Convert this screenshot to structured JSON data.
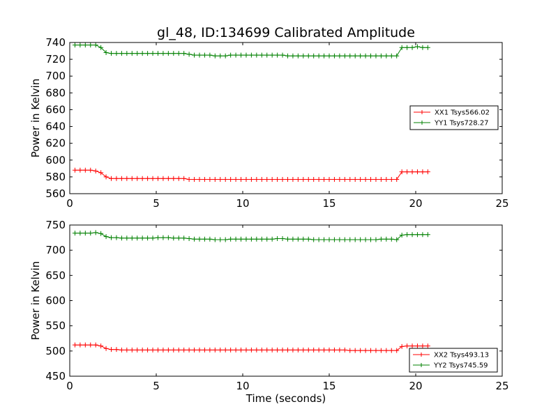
{
  "chart_data": [
    {
      "type": "line",
      "title": "gl_48, ID:134699 Calibrated Amplitude",
      "xlabel": "",
      "ylabel": "Power in Kelvin",
      "xlim": [
        0,
        25
      ],
      "ylim": [
        560,
        740
      ],
      "xticks": [
        0,
        5,
        10,
        15,
        20,
        25
      ],
      "yticks": [
        560,
        580,
        600,
        620,
        640,
        660,
        680,
        700,
        720,
        740
      ],
      "legend_position": "center-right",
      "x": [
        0.3,
        0.6,
        0.9,
        1.2,
        1.5,
        1.8,
        2.1,
        2.4,
        2.7,
        3.0,
        3.3,
        3.6,
        3.9,
        4.2,
        4.5,
        4.8,
        5.1,
        5.4,
        5.7,
        6.0,
        6.3,
        6.6,
        6.9,
        7.2,
        7.5,
        7.8,
        8.1,
        8.4,
        8.7,
        9.0,
        9.3,
        9.6,
        9.9,
        10.2,
        10.5,
        10.8,
        11.1,
        11.4,
        11.7,
        12.0,
        12.3,
        12.6,
        12.9,
        13.2,
        13.5,
        13.8,
        14.1,
        14.4,
        14.7,
        15.0,
        15.3,
        15.6,
        15.9,
        16.2,
        16.5,
        16.8,
        17.1,
        17.4,
        17.7,
        18.0,
        18.3,
        18.6,
        18.9,
        19.2,
        19.5,
        19.8,
        20.1,
        20.4,
        20.7
      ],
      "series": [
        {
          "name": "XX1 Tsys566.02",
          "color": "#ff0000",
          "values": [
            588,
            588,
            588,
            588,
            587,
            585,
            580,
            578,
            578,
            578,
            578,
            578,
            578,
            578,
            578,
            578,
            578,
            578,
            578,
            578,
            578,
            578,
            577,
            577,
            577,
            577,
            577,
            577,
            577,
            577,
            577,
            577,
            577,
            577,
            577,
            577,
            577,
            577,
            577,
            577,
            577,
            577,
            577,
            577,
            577,
            577,
            577,
            577,
            577,
            577,
            577,
            577,
            577,
            577,
            577,
            577,
            577,
            577,
            577,
            577,
            577,
            577,
            577,
            586,
            586,
            586,
            586,
            586,
            586
          ]
        },
        {
          "name": "YY1 Tsys728.27",
          "color": "#008000",
          "values": [
            737,
            737,
            737,
            737,
            737,
            734,
            728,
            727,
            727,
            727,
            727,
            727,
            727,
            727,
            727,
            727,
            727,
            727,
            727,
            727,
            727,
            727,
            726,
            725,
            725,
            725,
            725,
            724,
            724,
            724,
            725,
            725,
            725,
            725,
            725,
            725,
            725,
            725,
            725,
            725,
            725,
            724,
            724,
            724,
            724,
            724,
            724,
            724,
            724,
            724,
            724,
            724,
            724,
            724,
            724,
            724,
            724,
            724,
            724,
            724,
            724,
            724,
            724,
            734,
            734,
            734,
            735,
            734,
            734
          ]
        }
      ]
    },
    {
      "type": "line",
      "title": "",
      "xlabel": "Time (seconds)",
      "ylabel": "Power in Kelvin",
      "xlim": [
        0,
        25
      ],
      "ylim": [
        450,
        750
      ],
      "xticks": [
        0,
        5,
        10,
        15,
        20,
        25
      ],
      "yticks": [
        450,
        500,
        550,
        600,
        650,
        700,
        750
      ],
      "legend_position": "lower-right",
      "x": [
        0.3,
        0.6,
        0.9,
        1.2,
        1.5,
        1.8,
        2.1,
        2.4,
        2.7,
        3.0,
        3.3,
        3.6,
        3.9,
        4.2,
        4.5,
        4.8,
        5.1,
        5.4,
        5.7,
        6.0,
        6.3,
        6.6,
        6.9,
        7.2,
        7.5,
        7.8,
        8.1,
        8.4,
        8.7,
        9.0,
        9.3,
        9.6,
        9.9,
        10.2,
        10.5,
        10.8,
        11.1,
        11.4,
        11.7,
        12.0,
        12.3,
        12.6,
        12.9,
        13.2,
        13.5,
        13.8,
        14.1,
        14.4,
        14.7,
        15.0,
        15.3,
        15.6,
        15.9,
        16.2,
        16.5,
        16.8,
        17.1,
        17.4,
        17.7,
        18.0,
        18.3,
        18.6,
        18.9,
        19.2,
        19.5,
        19.8,
        20.1,
        20.4,
        20.7
      ],
      "series": [
        {
          "name": "XX2 Tsys493.13",
          "color": "#ff0000",
          "values": [
            512,
            512,
            512,
            512,
            512,
            510,
            505,
            503,
            503,
            502,
            502,
            502,
            502,
            502,
            502,
            502,
            502,
            502,
            502,
            502,
            502,
            502,
            502,
            502,
            502,
            502,
            502,
            502,
            502,
            502,
            502,
            502,
            502,
            502,
            502,
            502,
            502,
            502,
            502,
            502,
            502,
            502,
            502,
            502,
            502,
            502,
            502,
            502,
            502,
            502,
            502,
            502,
            502,
            501,
            501,
            501,
            501,
            501,
            501,
            501,
            501,
            501,
            501,
            509,
            510,
            510,
            510,
            510,
            510
          ]
        },
        {
          "name": "YY2 Tsys745.59",
          "color": "#008000",
          "values": [
            734,
            734,
            734,
            734,
            735,
            733,
            727,
            725,
            725,
            724,
            724,
            724,
            724,
            724,
            724,
            724,
            725,
            725,
            725,
            724,
            724,
            724,
            723,
            722,
            722,
            722,
            722,
            721,
            721,
            721,
            722,
            722,
            722,
            722,
            722,
            722,
            722,
            722,
            722,
            723,
            723,
            722,
            722,
            722,
            722,
            722,
            721,
            721,
            721,
            721,
            721,
            721,
            721,
            721,
            721,
            721,
            721,
            721,
            721,
            722,
            722,
            722,
            721,
            730,
            731,
            731,
            731,
            731,
            731
          ]
        }
      ]
    }
  ]
}
